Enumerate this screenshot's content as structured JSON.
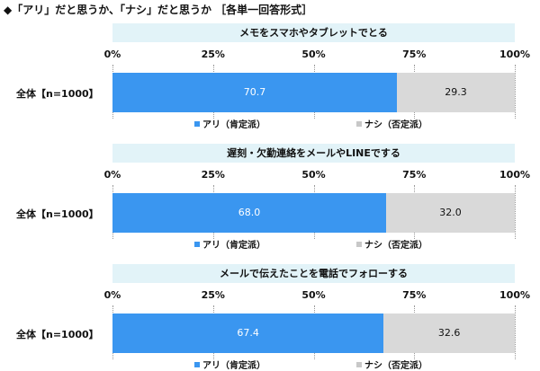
{
  "page": {
    "title": "◆「アリ」だと思うか、「ナシ」だと思うか ［各単一回答形式］"
  },
  "chart_data": [
    {
      "type": "bar",
      "orientation": "horizontal",
      "stacked": true,
      "title": "メモをスマホやタブレットでとる",
      "categories": [
        "全体【n=1000】"
      ],
      "series": [
        {
          "name": "アリ（肯定派）",
          "values": [
            70.7
          ],
          "color": "#3a96f0"
        },
        {
          "name": "ナシ（否定派）",
          "values": [
            29.3
          ],
          "color": "#d9d9d9"
        }
      ],
      "xlim": [
        0,
        100
      ],
      "ticks": [
        "0%",
        "25%",
        "50%",
        "75%",
        "100%"
      ],
      "grid": true,
      "legend": "bottom"
    },
    {
      "type": "bar",
      "orientation": "horizontal",
      "stacked": true,
      "title": "遅刻・欠勤連絡をメールやLINEでする",
      "categories": [
        "全体【n=1000】"
      ],
      "series": [
        {
          "name": "アリ（肯定派）",
          "values": [
            68.0
          ],
          "color": "#3a96f0"
        },
        {
          "name": "ナシ（否定派）",
          "values": [
            32.0
          ],
          "color": "#d9d9d9"
        }
      ],
      "xlim": [
        0,
        100
      ],
      "ticks": [
        "0%",
        "25%",
        "50%",
        "75%",
        "100%"
      ],
      "grid": true,
      "legend": "bottom"
    },
    {
      "type": "bar",
      "orientation": "horizontal",
      "stacked": true,
      "title": "メールで伝えたことを電話でフォローする",
      "categories": [
        "全体【n=1000】"
      ],
      "series": [
        {
          "name": "アリ（肯定派）",
          "values": [
            67.4
          ],
          "color": "#3a96f0"
        },
        {
          "name": "ナシ（否定派）",
          "values": [
            32.6
          ],
          "color": "#d9d9d9"
        }
      ],
      "xlim": [
        0,
        100
      ],
      "ticks": [
        "0%",
        "25%",
        "50%",
        "75%",
        "100%"
      ],
      "grid": true,
      "legend": "bottom"
    }
  ]
}
